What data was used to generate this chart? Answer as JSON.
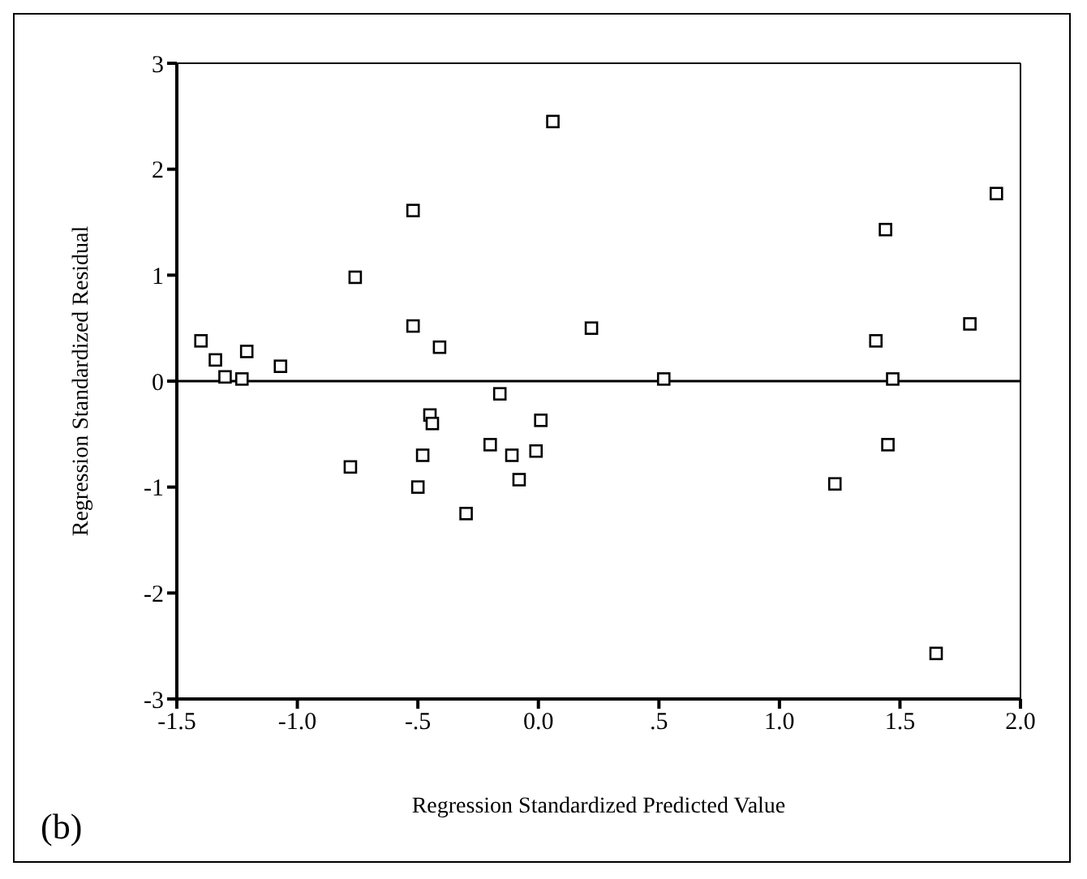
{
  "chart_data": {
    "type": "scatter",
    "xlabel": "Regression Standardized Predicted Value",
    "ylabel": "Regression Standardized Residual",
    "annotations": [
      "(b)"
    ],
    "x": [
      -1.4,
      -1.34,
      -1.3,
      -1.23,
      -1.21,
      -1.07,
      -0.76,
      -0.78,
      -0.52,
      -0.52,
      -0.41,
      -0.45,
      -0.44,
      -0.48,
      -0.5,
      -0.3,
      -0.16,
      -0.2,
      -0.11,
      -0.08,
      -0.01,
      0.01,
      0.06,
      0.22,
      0.52,
      1.23,
      1.4,
      1.44,
      1.47,
      1.45,
      1.65,
      1.79,
      1.9
    ],
    "series": [
      {
        "color": "#000000",
        "values": [
          0.38,
          0.2,
          0.04,
          0.02,
          0.28,
          0.14,
          0.98,
          -0.81,
          1.61,
          0.52,
          0.32,
          -0.32,
          -0.4,
          -0.7,
          -1.0,
          -1.25,
          -0.12,
          -0.6,
          -0.7,
          -0.93,
          -0.66,
          -0.37,
          2.45,
          0.5,
          0.02,
          -0.97,
          0.38,
          1.43,
          0.02,
          -0.6,
          -2.57,
          0.54,
          1.77
        ]
      }
    ],
    "xlim": [
      -1.5,
      2.0
    ],
    "xticks": [
      {
        "value": -1.5,
        "label": "-1.5"
      },
      {
        "value": -1.0,
        "label": "-1.0"
      },
      {
        "value": -0.5,
        "label": "-.5"
      },
      {
        "value": 0,
        "label": "0.0"
      },
      {
        "value": 0.5,
        "label": ".5"
      },
      {
        "value": 1.0,
        "label": "1.0"
      },
      {
        "value": 1.5,
        "label": "1.5"
      },
      {
        "value": 2.0,
        "label": "2.0"
      }
    ],
    "ylim": [
      -3,
      3
    ],
    "yticks": [
      -3,
      -2,
      -1,
      0,
      1,
      2,
      3
    ],
    "ref_lines": [
      {
        "axis": "y",
        "value": 0,
        "color": "#000000"
      }
    ],
    "grid": false,
    "legend": false,
    "marker": "square"
  }
}
